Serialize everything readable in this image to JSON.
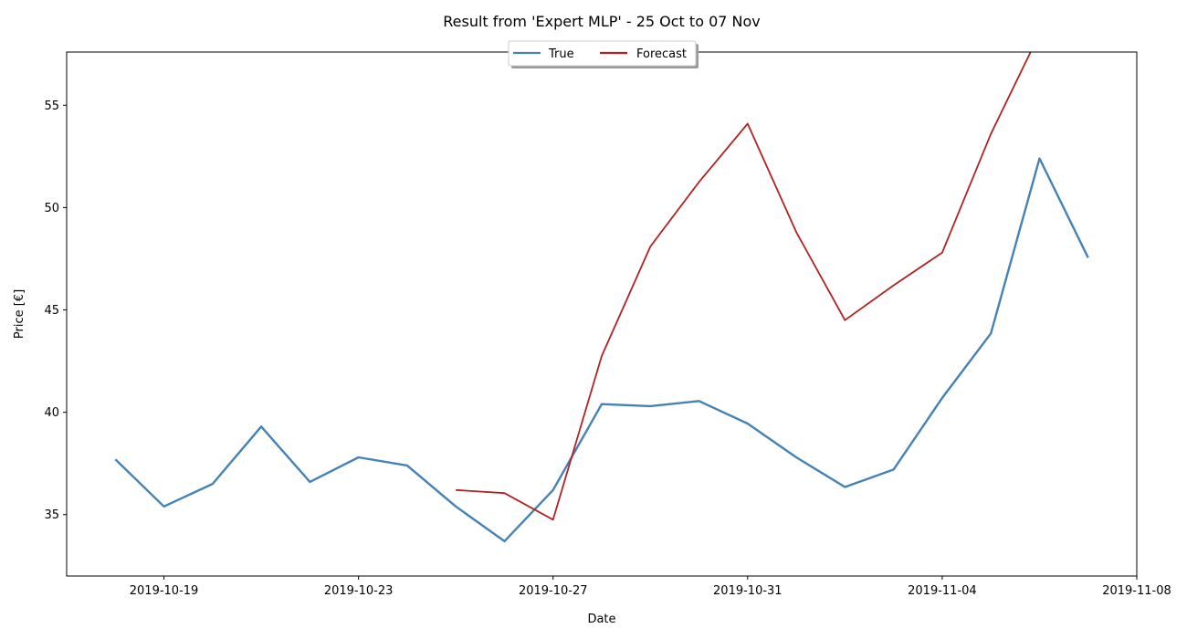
{
  "chart_data": {
    "type": "line",
    "title": "Result from 'Expert MLP' - 25 Oct to 07 Nov",
    "xlabel": "Date",
    "ylabel": "Price [€]",
    "xlim": [
      "2019-10-17",
      "2019-11-08"
    ],
    "ylim": [
      32.0,
      57.6
    ],
    "x_ticks": [
      "2019-10-19",
      "2019-10-23",
      "2019-10-27",
      "2019-10-31",
      "2019-11-04",
      "2019-11-08"
    ],
    "y_ticks": [
      35,
      40,
      45,
      50,
      55
    ],
    "grid": false,
    "legend_position": "top-center",
    "series": [
      {
        "name": "True",
        "color": "#4682b4",
        "x": [
          "2019-10-18",
          "2019-10-19",
          "2019-10-20",
          "2019-10-21",
          "2019-10-22",
          "2019-10-23",
          "2019-10-24",
          "2019-10-25",
          "2019-10-26",
          "2019-10-27",
          "2019-10-28",
          "2019-10-29",
          "2019-10-30",
          "2019-10-31",
          "2019-11-01",
          "2019-11-02",
          "2019-11-03",
          "2019-11-04",
          "2019-11-05",
          "2019-11-06",
          "2019-11-07"
        ],
        "values": [
          37.7,
          35.4,
          36.5,
          39.3,
          36.6,
          37.8,
          37.4,
          35.4,
          33.7,
          36.2,
          40.4,
          40.3,
          40.55,
          39.45,
          37.8,
          36.35,
          37.2,
          40.7,
          43.85,
          52.4,
          47.55
        ]
      },
      {
        "name": "Forecast",
        "color": "#b22222",
        "x": [
          "2019-10-25",
          "2019-10-26",
          "2019-10-27",
          "2019-10-28",
          "2019-10-29",
          "2019-10-30",
          "2019-10-31",
          "2019-11-01",
          "2019-11-02",
          "2019-11-03",
          "2019-11-04",
          "2019-11-05",
          "2019-11-06"
        ],
        "values": [
          36.2,
          36.05,
          34.75,
          42.75,
          48.1,
          51.25,
          54.1,
          48.8,
          44.5,
          46.2,
          47.8,
          53.6,
          58.5
        ]
      }
    ]
  }
}
